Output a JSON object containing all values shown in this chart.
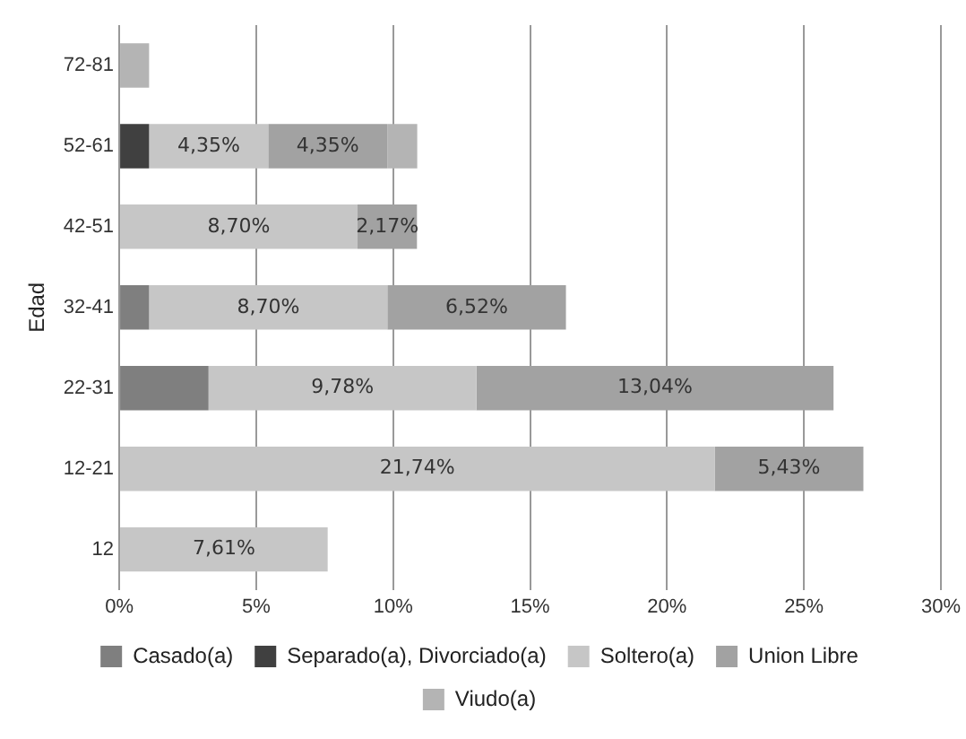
{
  "chart_data": {
    "type": "bar",
    "orientation": "horizontal",
    "stacked": true,
    "ylabel": "Edad",
    "categories": [
      "72-81",
      "52-61",
      "42-51",
      "32-41",
      "22-31",
      "12-21",
      "12"
    ],
    "series": [
      {
        "name": "Casado(a)",
        "color": "#7f7f7f",
        "values": [
          null,
          null,
          null,
          1.09,
          3.26,
          null,
          null
        ],
        "value_labels": [
          null,
          null,
          null,
          null,
          null,
          null,
          null
        ]
      },
      {
        "name": "Separado(a), Divorciado(a)",
        "color": "#404040",
        "values": [
          null,
          1.09,
          null,
          null,
          null,
          null,
          null
        ],
        "value_labels": [
          null,
          null,
          null,
          null,
          null,
          null,
          null
        ]
      },
      {
        "name": "Soltero(a)",
        "color": "#c6c6c6",
        "values": [
          null,
          4.35,
          8.7,
          8.7,
          9.78,
          21.74,
          7.61
        ],
        "value_labels": [
          null,
          "4,35%",
          "8,70%",
          "8,70%",
          "9,78%",
          "21,74%",
          "7,61%"
        ]
      },
      {
        "name": "Union Libre",
        "color": "#a2a2a2",
        "values": [
          null,
          4.35,
          2.17,
          6.52,
          13.04,
          5.43,
          null
        ],
        "value_labels": [
          null,
          "4,35%",
          "2,17%",
          "6,52%",
          "13,04%",
          "5,43%",
          null
        ]
      },
      {
        "name": "Viudo(a)",
        "color": "#b4b4b4",
        "values": [
          1.09,
          1.09,
          null,
          null,
          null,
          null,
          null
        ],
        "value_labels": [
          null,
          null,
          null,
          null,
          null,
          null,
          null
        ]
      }
    ],
    "xlim": [
      0,
      30
    ],
    "xticks": [
      {
        "value": 0,
        "label": "0%"
      },
      {
        "value": 5,
        "label": "5%"
      },
      {
        "value": 10,
        "label": "10%"
      },
      {
        "value": 15,
        "label": "15%"
      },
      {
        "value": 20,
        "label": "20%"
      },
      {
        "value": 25,
        "label": "25%"
      },
      {
        "value": 30,
        "label": "30%"
      }
    ],
    "grid": "x",
    "legend": "bottom"
  }
}
